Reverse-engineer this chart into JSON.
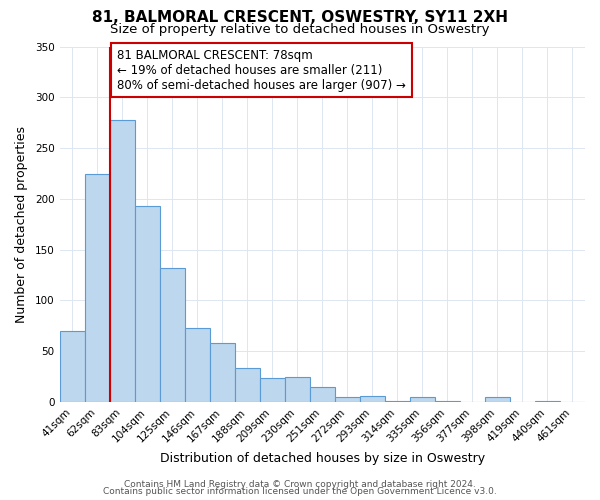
{
  "title": "81, BALMORAL CRESCENT, OSWESTRY, SY11 2XH",
  "subtitle": "Size of property relative to detached houses in Oswestry",
  "xlabel": "Distribution of detached houses by size in Oswestry",
  "ylabel": "Number of detached properties",
  "bar_labels": [
    "41sqm",
    "62sqm",
    "83sqm",
    "104sqm",
    "125sqm",
    "146sqm",
    "167sqm",
    "188sqm",
    "209sqm",
    "230sqm",
    "251sqm",
    "272sqm",
    "293sqm",
    "314sqm",
    "335sqm",
    "356sqm",
    "377sqm",
    "398sqm",
    "419sqm",
    "440sqm",
    "461sqm"
  ],
  "bar_values": [
    70,
    224,
    278,
    193,
    132,
    73,
    58,
    33,
    24,
    25,
    15,
    5,
    6,
    1,
    5,
    1,
    0,
    5,
    0,
    1,
    0
  ],
  "bar_color": "#bdd7ee",
  "bar_edge_color": "#5b9bd5",
  "vline_x_index": 2,
  "vline_color": "#cc0000",
  "annotation_text": "81 BALMORAL CRESCENT: 78sqm\n← 19% of detached houses are smaller (211)\n80% of semi-detached houses are larger (907) →",
  "annotation_box_color": "#ffffff",
  "annotation_box_edge_color": "#cc0000",
  "ylim": [
    0,
    350
  ],
  "yticks": [
    0,
    50,
    100,
    150,
    200,
    250,
    300,
    350
  ],
  "footer1": "Contains HM Land Registry data © Crown copyright and database right 2024.",
  "footer2": "Contains public sector information licensed under the Open Government Licence v3.0.",
  "background_color": "#ffffff",
  "grid_color": "#dce6f1",
  "title_fontsize": 11,
  "subtitle_fontsize": 9.5,
  "axis_label_fontsize": 9,
  "tick_fontsize": 7.5,
  "annotation_fontsize": 8.5,
  "footer_fontsize": 6.5
}
